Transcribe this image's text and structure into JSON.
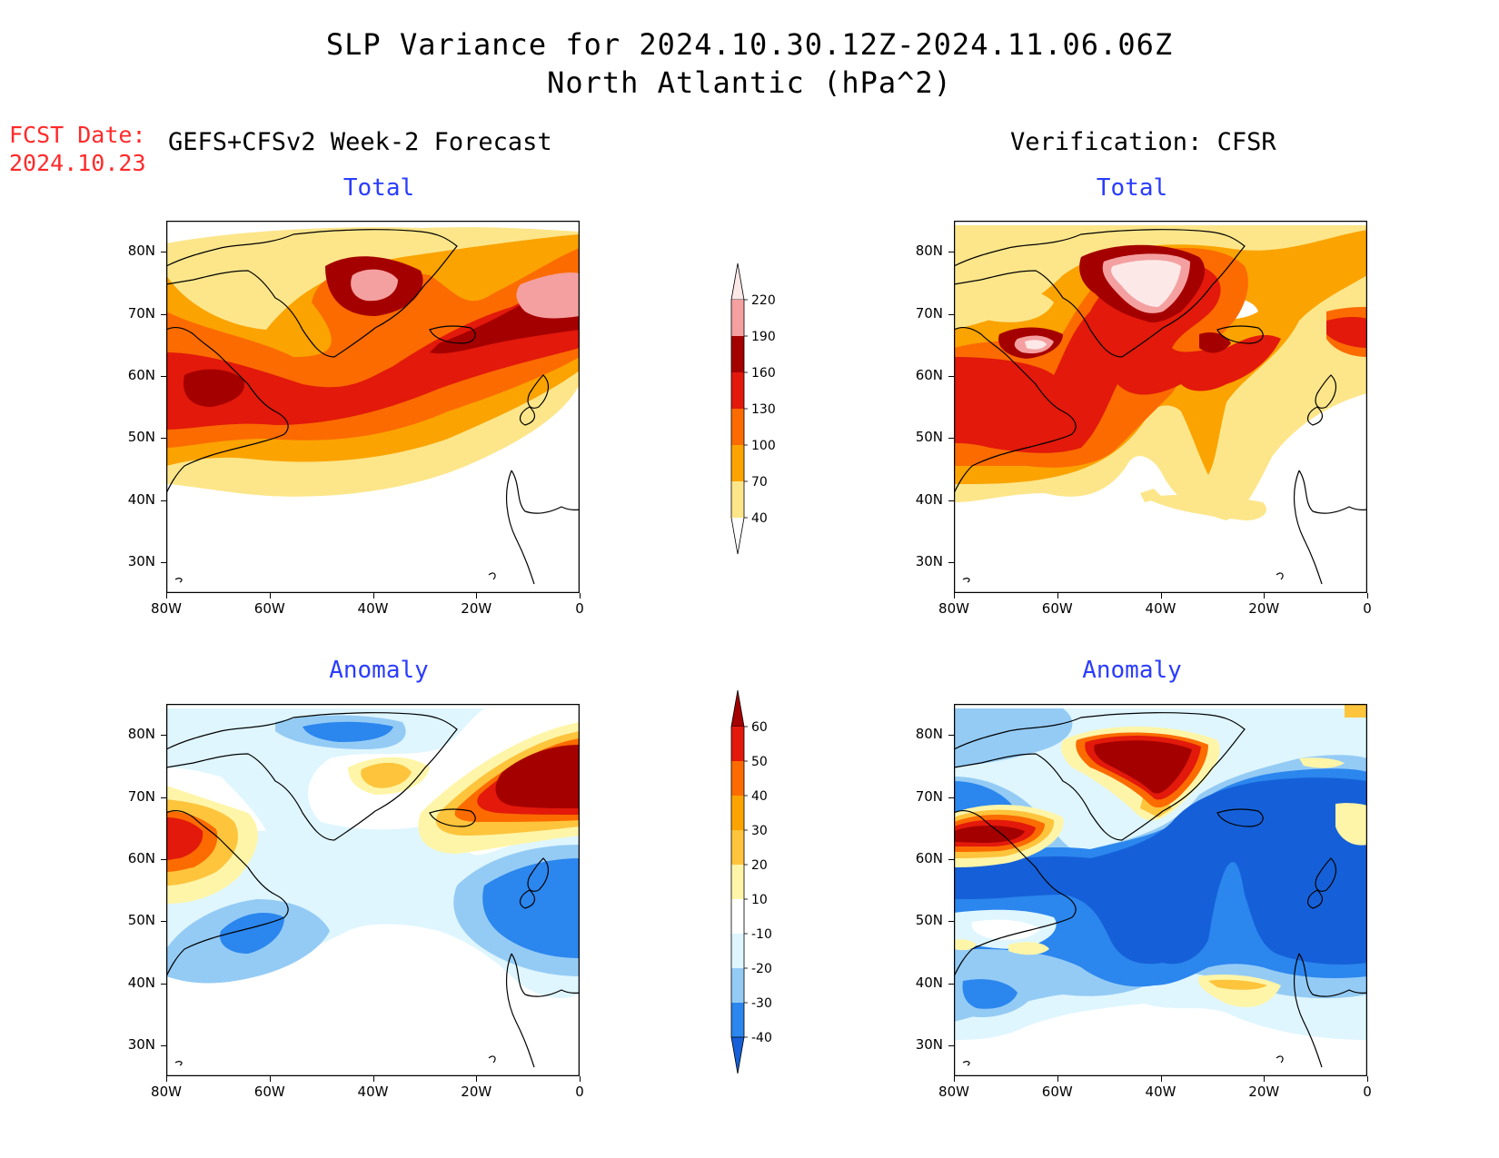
{
  "title": {
    "line1": "SLP Variance for 2024.10.30.12Z-2024.11.06.06Z",
    "line2": "North Atlantic (hPa^2)"
  },
  "fcst_date": {
    "label": "FCST Date:",
    "value": "2024.10.23"
  },
  "headers": {
    "left": "GEFS+CFSv2 Week-2 Forecast",
    "right": "Verification: CFSR"
  },
  "panels": [
    {
      "title": "Total",
      "model": "GEFS+CFSv2 Week-2 Forecast",
      "kind": "total"
    },
    {
      "title": "Total",
      "model": "Verification: CFSR",
      "kind": "total"
    },
    {
      "title": "Anomaly",
      "model": "GEFS+CFSv2 Week-2 Forecast",
      "kind": "anomaly"
    },
    {
      "title": "Anomaly",
      "model": "Verification: CFSR",
      "kind": "anomaly"
    }
  ],
  "axes": {
    "lat_labels": [
      "80N",
      "70N",
      "60N",
      "50N",
      "40N",
      "30N"
    ],
    "lat_values": [
      80,
      70,
      60,
      50,
      40,
      30
    ],
    "lat_range": [
      25,
      85
    ],
    "lon_labels": [
      "80W",
      "60W",
      "40W",
      "20W",
      "0"
    ],
    "lon_values": [
      -80,
      -60,
      -40,
      -20,
      0
    ],
    "lon_range": [
      -80,
      0
    ]
  },
  "colorbars": {
    "total": {
      "levels": [
        "40",
        "70",
        "100",
        "130",
        "160",
        "190",
        "220"
      ],
      "colors": [
        "#fde68a",
        "#fba300",
        "#fb6b00",
        "#e2190b",
        "#a50000",
        "#f4a0a0",
        "#fde8e8"
      ]
    },
    "anomaly": {
      "levels": [
        "-40",
        "-30",
        "-20",
        "-10",
        "10",
        "20",
        "30",
        "40",
        "50",
        "60"
      ],
      "colors": [
        "#1560d8",
        "#2b86ee",
        "#94cbf5",
        "#dff6ff",
        "#ffffff",
        "#fff5a8",
        "#fdc43c",
        "#fba300",
        "#fb6b00",
        "#e2190b",
        "#a50000"
      ]
    }
  },
  "colors": {
    "title_text": "#000000",
    "panel_title": "#2a3cff",
    "fcst_text": "#ff2a2a"
  }
}
